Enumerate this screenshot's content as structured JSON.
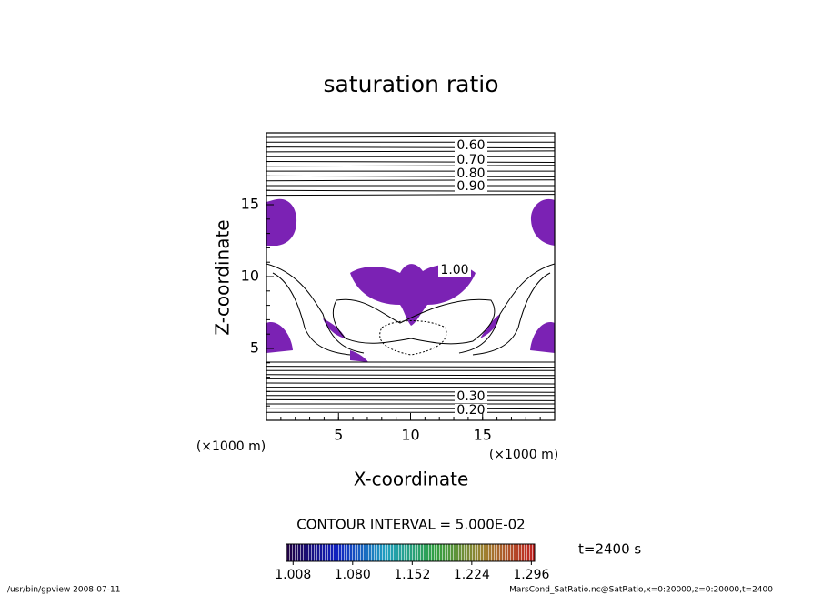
{
  "chart_data": {
    "type": "contour",
    "title": "saturation ratio",
    "x_label": "X-coordinate",
    "y_label": "Z-coordinate",
    "x_unit": "(×1000 m)",
    "y_unit": "(×1000 m)",
    "xlim": [
      0,
      20
    ],
    "ylim": [
      0,
      20
    ],
    "xticks": [
      5,
      10,
      15
    ],
    "yticks": [
      5,
      10,
      15
    ],
    "contour_labels": [
      "0.60",
      "0.70",
      "0.80",
      "0.90",
      "1.00",
      "0.30",
      "0.20"
    ],
    "fill_color": "#7b22b4",
    "contour_interval": "CONTOUR INTERVAL = 5.000E-02",
    "time_label": "t=2400 s",
    "colorbar": {
      "lim": [
        1.0,
        1.3
      ],
      "ticks": [
        {
          "value": 1.008,
          "label": "1.008"
        },
        {
          "value": 1.08,
          "label": "1.080"
        },
        {
          "value": 1.152,
          "label": "1.152"
        },
        {
          "value": 1.224,
          "label": "1.224"
        },
        {
          "value": 1.296,
          "label": "1.296"
        }
      ]
    },
    "footer_left": "/usr/bin/gpview   2008-07-11",
    "footer_right": "MarsCond_SatRatio.nc@SatRatio,x=0:20000,z=0:20000,t=2400"
  }
}
